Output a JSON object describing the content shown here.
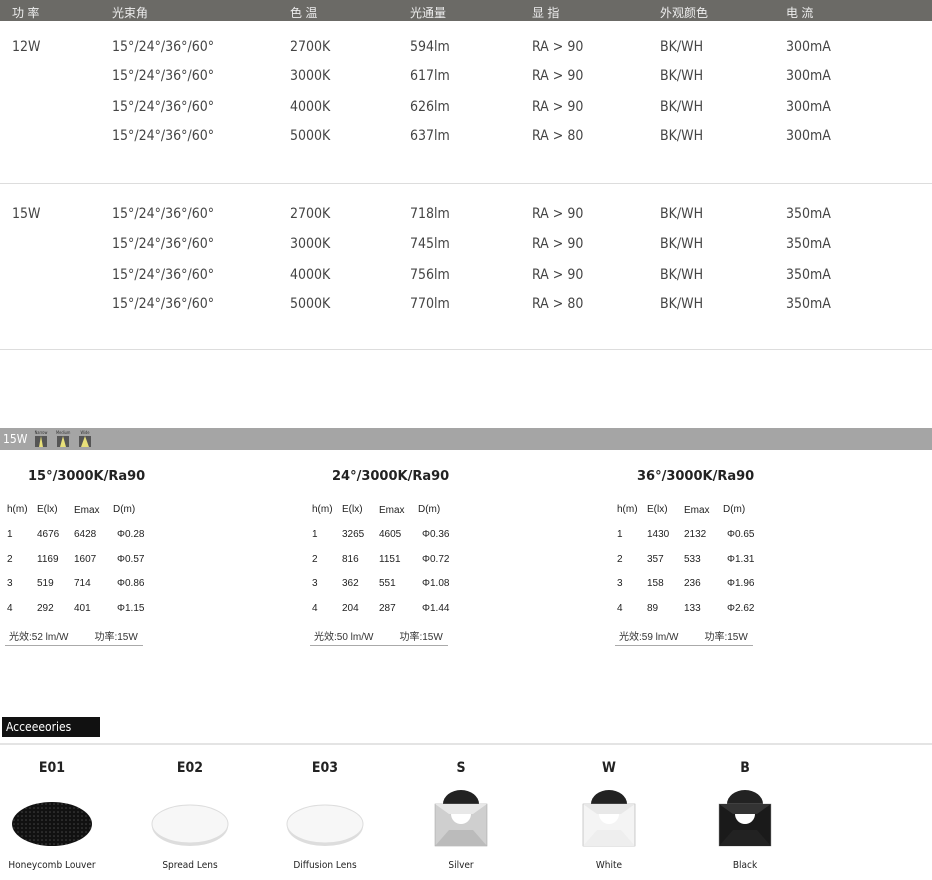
{
  "spec_table": {
    "headers": [
      "功 率",
      "光束角",
      "色 温",
      "光通量",
      "显 指",
      "外观颜色",
      "电 流"
    ],
    "groups": [
      {
        "power": "12W",
        "rows": [
          [
            "15°/24°/36°/60°",
            "2700K",
            "594lm",
            "RA > 90",
            "BK/WH",
            "300mA"
          ],
          [
            "15°/24°/36°/60°",
            "3000K",
            "617lm",
            "RA > 90",
            "BK/WH",
            "300mA"
          ],
          [
            "15°/24°/36°/60°",
            "4000K",
            "626lm",
            "RA > 90",
            "BK/WH",
            "300mA"
          ],
          [
            "15°/24°/36°/60°",
            "5000K",
            "637lm",
            "RA > 80",
            "BK/WH",
            "300mA"
          ]
        ]
      },
      {
        "power": "15W",
        "rows": [
          [
            "15°/24°/36°/60°",
            "2700K",
            "718lm",
            "RA > 90",
            "BK/WH",
            "350mA"
          ],
          [
            "15°/24°/36°/60°",
            "3000K",
            "745lm",
            "RA > 90",
            "BK/WH",
            "350mA"
          ],
          [
            "15°/24°/36°/60°",
            "4000K",
            "756lm",
            "RA > 90",
            "BK/WH",
            "350mA"
          ],
          [
            "15°/24°/36°/60°",
            "5000K",
            "770lm",
            "RA > 80",
            "BK/WH",
            "350mA"
          ]
        ]
      }
    ]
  },
  "photometric": {
    "band_label": "15W",
    "beam_icons": [
      "Narrow",
      "Medium",
      "Wide"
    ],
    "headers": [
      "h(m)",
      "E(lx)",
      "Emax",
      "D(m)"
    ],
    "panels": [
      {
        "title": "15°/3000K/Ra90",
        "rows": [
          [
            "1",
            "4676",
            "6428",
            "Φ0.28"
          ],
          [
            "2",
            "1169",
            "1607",
            "Φ0.57"
          ],
          [
            "3",
            "519",
            "714",
            "Φ0.86"
          ],
          [
            "4",
            "292",
            "401",
            "Φ1.15"
          ]
        ],
        "efficacy": "光效:52 lm/W",
        "power": "功率:15W"
      },
      {
        "title": "24°/3000K/Ra90",
        "rows": [
          [
            "1",
            "3265",
            "4605",
            "Φ0.36"
          ],
          [
            "2",
            "816",
            "1151",
            "Φ0.72"
          ],
          [
            "3",
            "362",
            "551",
            "Φ1.08"
          ],
          [
            "4",
            "204",
            "287",
            "Φ1.44"
          ]
        ],
        "efficacy": "光效:50 lm/W",
        "power": "功率:15W"
      },
      {
        "title": "36°/3000K/Ra90",
        "rows": [
          [
            "1",
            "1430",
            "2132",
            "Φ0.65"
          ],
          [
            "2",
            "357",
            "533",
            "Φ1.31"
          ],
          [
            "3",
            "158",
            "236",
            "Φ1.96"
          ],
          [
            "4",
            "89",
            "133",
            "Φ2.62"
          ]
        ],
        "efficacy": "光效:59 lm/W",
        "power": "功率:15W"
      }
    ]
  },
  "accessories": {
    "title": "Acceeeories",
    "items": [
      {
        "code": "E01",
        "name": "Honeycomb Louver",
        "kind": "louver"
      },
      {
        "code": "E02",
        "name": "Spread Lens",
        "kind": "lens"
      },
      {
        "code": "E03",
        "name": "Diffusion Lens",
        "kind": "lens"
      },
      {
        "code": "S",
        "name": "Silver",
        "kind": "reflector",
        "color": "#cfcfcf"
      },
      {
        "code": "W",
        "name": "White",
        "kind": "reflector",
        "color": "#f4f4f4"
      },
      {
        "code": "B",
        "name": "Black",
        "kind": "reflector",
        "color": "#1a1a1a"
      }
    ]
  }
}
